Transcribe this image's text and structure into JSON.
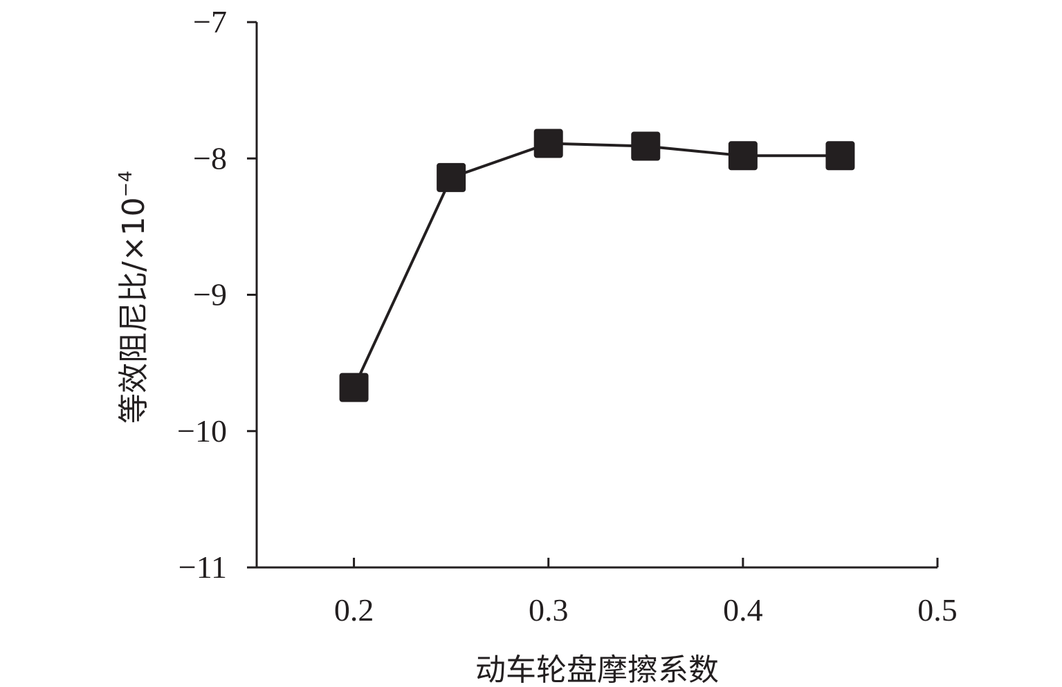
{
  "chart_data": {
    "type": "line",
    "xlabel": "动车轮盘摩擦系数",
    "ylabel": "等效阻尼比/×10",
    "ylabel_exponent": "−4",
    "xlim": [
      0.15,
      0.5
    ],
    "ylim": [
      -11,
      -7
    ],
    "xticks": [
      0.2,
      0.3,
      0.4,
      0.5
    ],
    "xtick_labels": [
      "0.2",
      "0.3",
      "0.4",
      "0.5"
    ],
    "yticks": [
      -7,
      -8,
      -9,
      -10,
      -11
    ],
    "ytick_labels": [
      "−7",
      "−8",
      "−9",
      "−10",
      "−11"
    ],
    "grid": false,
    "marker": "square",
    "colors": {
      "line": "#231f20",
      "marker": "#231f20"
    },
    "series": [
      {
        "x": [
          0.2,
          0.25,
          0.3,
          0.35,
          0.4,
          0.45
        ],
        "y": [
          -9.68,
          -8.14,
          -7.89,
          -7.91,
          -7.98,
          -7.98
        ]
      }
    ]
  }
}
